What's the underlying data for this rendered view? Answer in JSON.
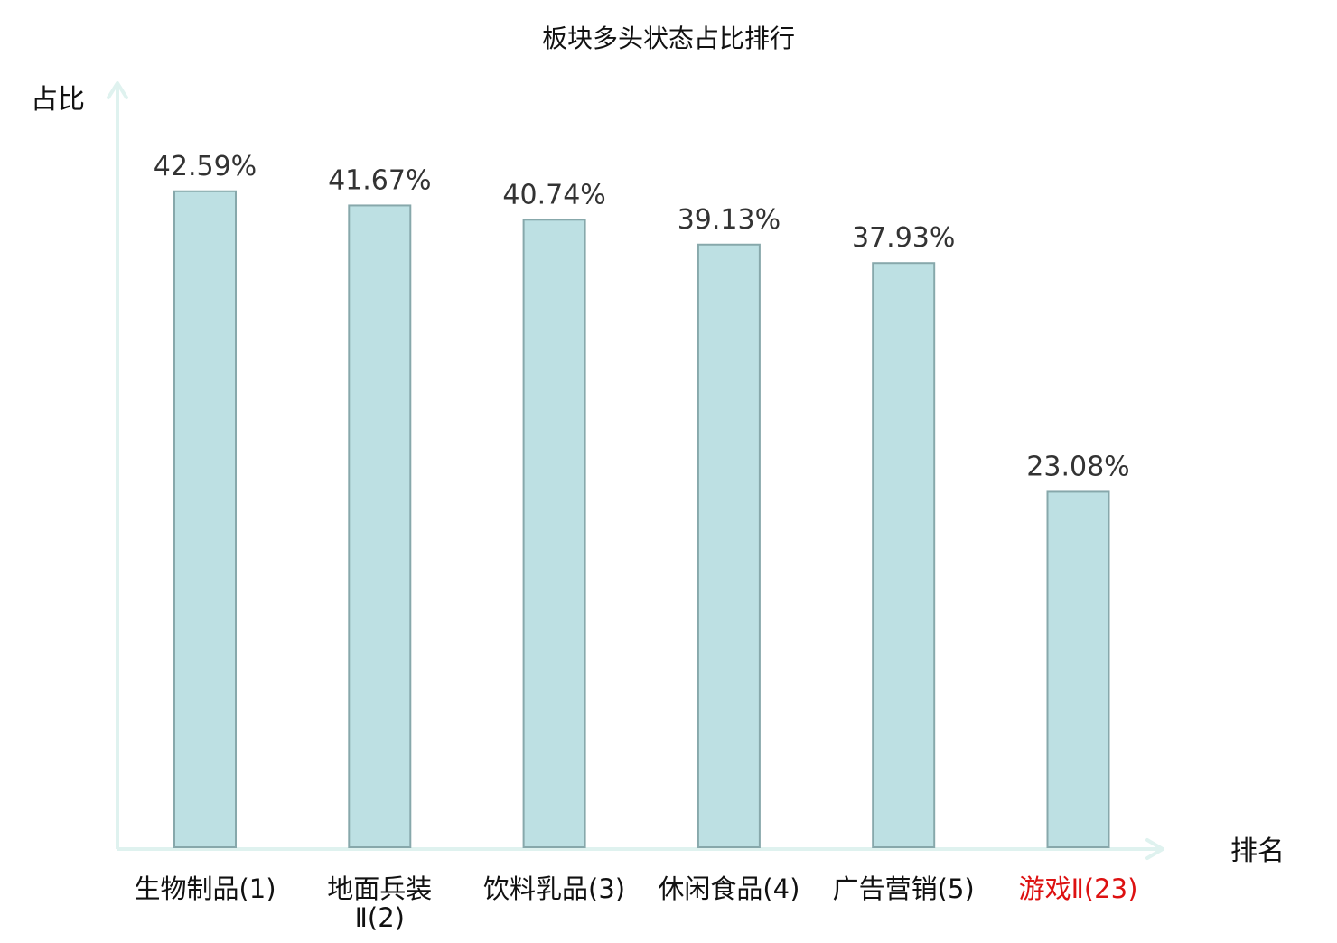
{
  "chart_data": {
    "type": "bar",
    "title": "板块多头状态占比排行",
    "ylabel": "占比",
    "xlabel": "排名",
    "categories": [
      {
        "name": "生物制品",
        "rank": "(1)",
        "lines": [
          "生物制品(1)"
        ]
      },
      {
        "name": "地面兵装Ⅱ",
        "rank": "(2)",
        "lines": [
          "地面兵装",
          "Ⅱ(2)"
        ]
      },
      {
        "name": "饮料乳品",
        "rank": "(3)",
        "lines": [
          "饮料乳品(3)"
        ]
      },
      {
        "name": "休闲食品",
        "rank": "(4)",
        "lines": [
          "休闲食品(4)"
        ]
      },
      {
        "name": "广告营销",
        "rank": "(5)",
        "lines": [
          "广告营销(5)"
        ]
      },
      {
        "name": "游戏Ⅱ",
        "rank": "(23)",
        "lines": [
          "游戏Ⅱ(23)"
        ],
        "highlight": true
      }
    ],
    "values": [
      42.59,
      41.67,
      40.74,
      39.13,
      37.93,
      23.08
    ],
    "value_labels": [
      "42.59%",
      "41.67%",
      "40.74%",
      "39.13%",
      "37.93%",
      "23.08%"
    ],
    "unit": "%",
    "ylim": [
      0,
      50
    ],
    "grid": false,
    "legend": "none",
    "colors": {
      "bar_fill": "#bde0e3",
      "bar_stroke": "#87a8ab",
      "axis": "#dff2ef",
      "highlight_text": "#dd1111",
      "label_text": "#333333"
    }
  }
}
